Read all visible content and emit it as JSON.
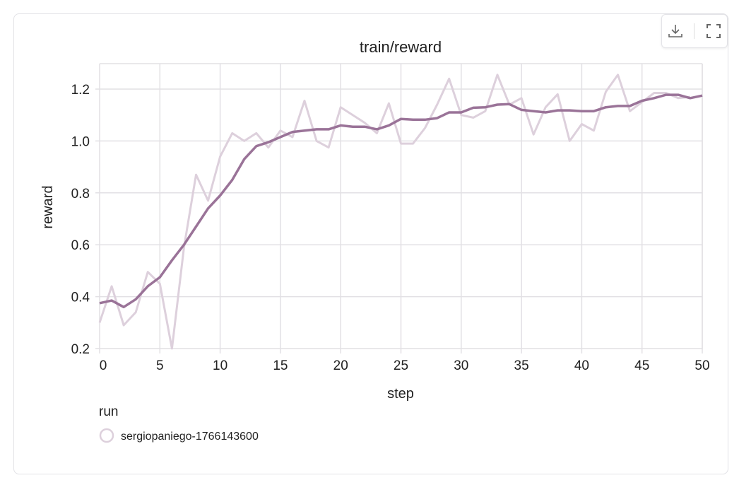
{
  "toolbar": {
    "download_icon": "download-icon",
    "fullscreen_icon": "fullscreen-icon"
  },
  "colors": {
    "smoothed": "#9a7398",
    "raw": "#ddd0dc",
    "grid": "#e2e0e4"
  },
  "chart_data": {
    "type": "line",
    "title": "train/reward",
    "xlabel": "step",
    "ylabel": "reward",
    "xlim": [
      0,
      50
    ],
    "ylim": [
      0.2,
      1.3
    ],
    "xticks": [
      "0",
      "5",
      "10",
      "15",
      "20",
      "25",
      "30",
      "35",
      "40",
      "45",
      "50"
    ],
    "yticks": [
      "0.2",
      "0.4",
      "0.6",
      "0.8",
      "1.0",
      "1.2"
    ],
    "grid": true,
    "legend": {
      "title": "run",
      "position": "bottom-left",
      "entries": [
        "sergiopaniego-1766143600"
      ]
    },
    "series": [
      {
        "name": "sergiopaniego-1766143600",
        "kind": "raw",
        "x": [
          0,
          1,
          2,
          3,
          4,
          5,
          6,
          7,
          8,
          9,
          10,
          11,
          12,
          13,
          14,
          15,
          16,
          17,
          18,
          19,
          20,
          21,
          22,
          23,
          24,
          25,
          26,
          27,
          28,
          29,
          30,
          31,
          32,
          33,
          34,
          35,
          36,
          37,
          38,
          39,
          40,
          41,
          42,
          43,
          44,
          45,
          46,
          47,
          48,
          49
        ],
        "y": [
          0.3,
          0.44,
          0.29,
          0.34,
          0.495,
          0.45,
          0.2,
          0.59,
          0.87,
          0.77,
          0.94,
          1.03,
          1.0,
          1.03,
          0.975,
          1.04,
          1.015,
          1.155,
          1.0,
          0.975,
          1.13,
          1.1,
          1.07,
          1.03,
          1.145,
          0.99,
          0.99,
          1.05,
          1.14,
          1.24,
          1.1,
          1.09,
          1.115,
          1.255,
          1.14,
          1.165,
          1.025,
          1.13,
          1.18,
          1.0,
          1.065,
          1.04,
          1.19,
          1.255,
          1.115,
          1.15,
          1.185,
          1.185,
          1.165,
          1.17
        ]
      },
      {
        "name": "sergiopaniego-1766143600",
        "kind": "smoothed",
        "x": [
          0,
          1,
          2,
          3,
          4,
          5,
          6,
          7,
          8,
          9,
          10,
          11,
          12,
          13,
          14,
          15,
          16,
          17,
          18,
          19,
          20,
          21,
          22,
          23,
          24,
          25,
          26,
          27,
          28,
          29,
          30,
          31,
          32,
          33,
          34,
          35,
          36,
          37,
          38,
          39,
          40,
          41,
          42,
          43,
          44,
          45,
          46,
          47,
          48,
          49,
          50
        ],
        "y": [
          0.375,
          0.385,
          0.36,
          0.39,
          0.44,
          0.475,
          0.54,
          0.6,
          0.67,
          0.74,
          0.79,
          0.85,
          0.93,
          0.98,
          0.995,
          1.015,
          1.035,
          1.04,
          1.045,
          1.045,
          1.06,
          1.055,
          1.055,
          1.045,
          1.06,
          1.085,
          1.082,
          1.082,
          1.088,
          1.11,
          1.11,
          1.128,
          1.13,
          1.14,
          1.142,
          1.12,
          1.115,
          1.11,
          1.118,
          1.118,
          1.115,
          1.115,
          1.13,
          1.135,
          1.135,
          1.155,
          1.165,
          1.178,
          1.178,
          1.165,
          1.175
        ]
      }
    ]
  }
}
